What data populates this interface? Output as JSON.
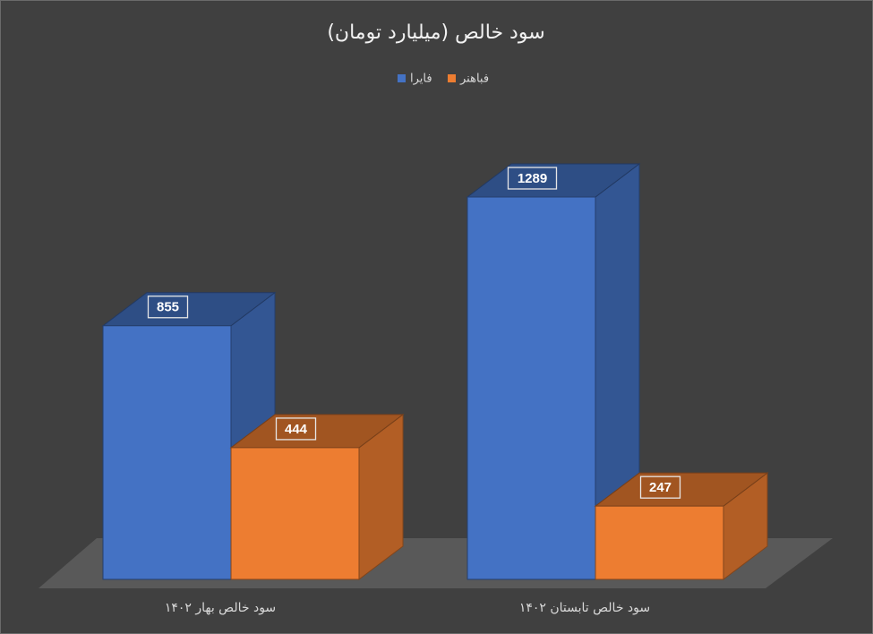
{
  "chart_data": {
    "type": "bar3d",
    "title": "سود خالص (میلیارد تومان)",
    "categories": [
      "سود خالص بهار ۱۴۰۲",
      "سود خالص تابستان ۱۴۰۲"
    ],
    "series": [
      {
        "name": "فایرا",
        "color": "#4472c4",
        "values": [
          855,
          1289
        ]
      },
      {
        "name": "فباهنر",
        "color": "#ed7d31",
        "values": [
          444,
          247
        ]
      }
    ]
  }
}
